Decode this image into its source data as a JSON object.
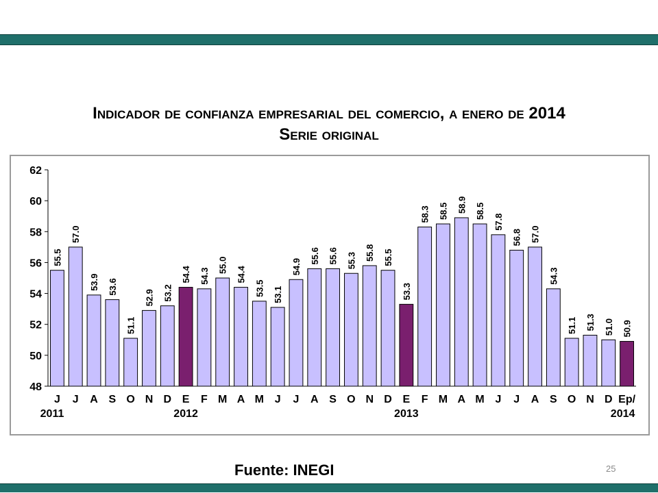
{
  "slide": {
    "title_line1": "Indicador de confianza empresarial del comercio, a enero de 2014",
    "title_line2": "Serie original",
    "source": "Fuente: INEGI",
    "page_number": "25"
  },
  "colors": {
    "bar_fill": "#c8c0ff",
    "bar_fill_highlight": "#7a1f6e",
    "bar_stroke": "#000000",
    "teal_band": "#1f6f6a"
  },
  "chart_data": {
    "type": "bar",
    "title": "Indicador de confianza empresarial del comercio, a enero de 2014",
    "subtitle": "Serie original",
    "categories": [
      "J",
      "J",
      "A",
      "S",
      "O",
      "N",
      "D",
      "E",
      "F",
      "M",
      "A",
      "M",
      "J",
      "J",
      "A",
      "S",
      "O",
      "N",
      "D",
      "E",
      "F",
      "M",
      "A",
      "M",
      "J",
      "J",
      "A",
      "S",
      "O",
      "N",
      "D",
      "Ep/"
    ],
    "year_labels": [
      {
        "index": 0,
        "label": "2011"
      },
      {
        "index": 7,
        "label": "2012"
      },
      {
        "index": 19,
        "label": "2013"
      },
      {
        "index": 31,
        "label": "2014"
      }
    ],
    "values": [
      55.5,
      57.0,
      53.9,
      53.6,
      51.1,
      52.9,
      53.2,
      54.4,
      54.3,
      55.0,
      54.4,
      53.5,
      53.1,
      54.9,
      55.6,
      55.6,
      55.3,
      55.8,
      55.5,
      53.3,
      58.3,
      58.5,
      58.9,
      58.5,
      57.8,
      56.8,
      57.0,
      54.3,
      51.1,
      51.3,
      51.0,
      50.9
    ],
    "data_labels": [
      "55.5",
      "57.0",
      "53.9",
      "53.6",
      "51.1",
      "52.9",
      "53.2",
      "54.4",
      "54.3",
      "55.0",
      "54.4",
      "53.5",
      "53.1",
      "54.9",
      "55.6",
      "55.6",
      "55.3",
      "55.8",
      "55.5",
      "53.3",
      "58.3",
      "58.5",
      "58.9",
      "58.5",
      "57.8",
      "56.8",
      "57.0",
      "54.3",
      "51.1",
      "51.3",
      "51.0",
      "50.9"
    ],
    "highlight_indices": [
      7,
      19,
      31
    ],
    "ylim": [
      48,
      62
    ],
    "yticks": [
      48,
      50,
      52,
      54,
      56,
      58,
      60,
      62
    ],
    "xlabel": "",
    "ylabel": "",
    "grid": false,
    "legend": "none"
  }
}
